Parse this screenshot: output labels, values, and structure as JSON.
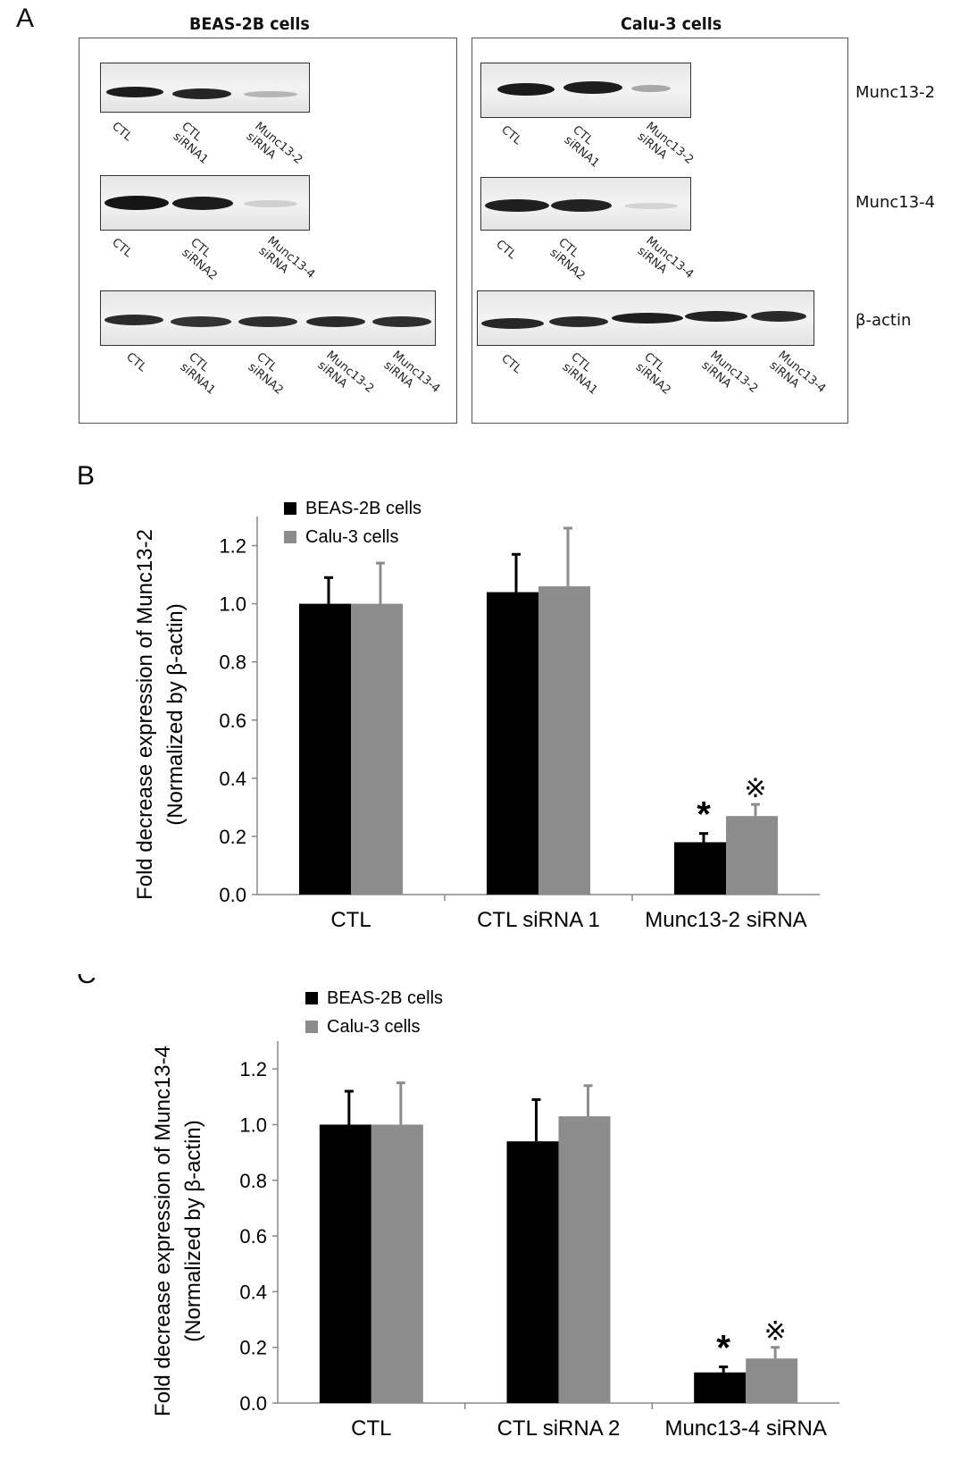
{
  "panel_a": {
    "letter": "A",
    "left_title": "BEAS-2B cells",
    "right_title": "Calu-3 cells",
    "proteins": [
      "Munc13-2",
      "Munc13-4",
      "β-actin"
    ],
    "lanes_munc13_2": [
      "CTL",
      "CTL\nsiRNA1",
      "Munc13-2\nsiRNA"
    ],
    "lanes_munc13_4": [
      "CTL",
      "CTL\nsiRNA2",
      "Munc13-4\nsiRNA"
    ],
    "lanes_actin": [
      "CTL",
      "CTL\nsiRNA1",
      "CTL\nsiRNA2",
      "Munc13-2\nsiRNA",
      "Munc13-4\nsiRNA"
    ]
  },
  "chart_data": [
    {
      "type": "bar",
      "panel": "B",
      "categories": [
        "CTL",
        "CTL siRNA 1",
        "Munc13-2 siRNA"
      ],
      "series": [
        {
          "name": "BEAS-2B cells",
          "values": [
            1.0,
            1.04,
            0.18
          ],
          "errors": [
            0.09,
            0.13,
            0.03
          ],
          "color": "#000000"
        },
        {
          "name": "Calu-3 cells",
          "values": [
            1.0,
            1.06,
            0.27
          ],
          "errors": [
            0.14,
            0.2,
            0.04
          ],
          "color": "#8c8c8c"
        }
      ],
      "ylabel": "Fold decrease expression of Munc13-2",
      "ylabel2": "(Normalized by  β-actin)",
      "ylim": [
        0,
        1.3
      ],
      "yticks": [
        "0.0",
        "0.2",
        "0.4",
        "0.6",
        "0.8",
        "1.0",
        "1.2"
      ],
      "annotations": [
        "*",
        "※"
      ],
      "legend": "top-left"
    },
    {
      "type": "bar",
      "panel": "C",
      "categories": [
        "CTL",
        "CTL siRNA 2",
        "Munc13-4 siRNA"
      ],
      "series": [
        {
          "name": "BEAS-2B cells",
          "values": [
            1.0,
            0.94,
            0.11
          ],
          "errors": [
            0.12,
            0.15,
            0.02
          ],
          "color": "#000000"
        },
        {
          "name": "Calu-3 cells",
          "values": [
            1.0,
            1.03,
            0.16
          ],
          "errors": [
            0.15,
            0.11,
            0.04
          ],
          "color": "#8c8c8c"
        }
      ],
      "ylabel": "Fold decrease expression of Munc13-4",
      "ylabel2": "(Normalized by  β-actin)",
      "ylim": [
        0,
        1.3
      ],
      "yticks": [
        "0.0",
        "0.2",
        "0.4",
        "0.6",
        "0.8",
        "1.0",
        "1.2"
      ],
      "annotations": [
        "*",
        "※"
      ],
      "legend": "top-left"
    }
  ]
}
